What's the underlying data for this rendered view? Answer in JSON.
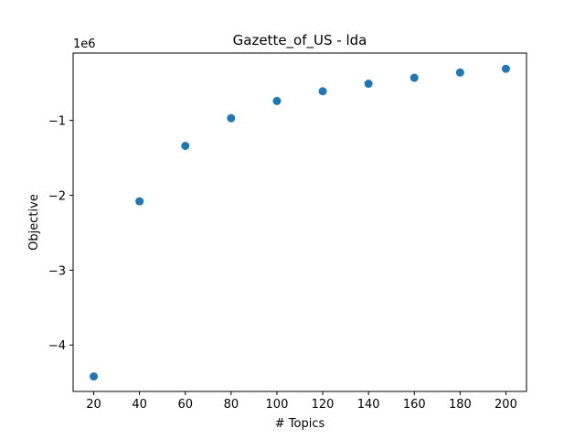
{
  "chart_data": {
    "type": "scatter",
    "title": "Gazette_of_US - lda",
    "xlabel": "# Topics",
    "ylabel": "Objective",
    "y_offset_label": "1e6",
    "x": [
      20,
      40,
      60,
      80,
      100,
      120,
      140,
      160,
      180,
      200
    ],
    "y": [
      -4.42,
      -2.08,
      -1.34,
      -0.97,
      -0.74,
      -0.61,
      -0.51,
      -0.43,
      -0.36,
      -0.31
    ],
    "xlim": [
      11,
      209
    ],
    "ylim": [
      -4.62,
      -0.1
    ],
    "x_ticks": [
      20,
      40,
      60,
      80,
      100,
      120,
      140,
      160,
      180,
      200
    ],
    "y_ticks": [
      -4,
      -3,
      -2,
      -1
    ],
    "y_tick_labels": [
      "−4",
      "−3",
      "−2",
      "−1"
    ],
    "marker_color": "#1f77b4",
    "grid": false,
    "legend": "none"
  }
}
